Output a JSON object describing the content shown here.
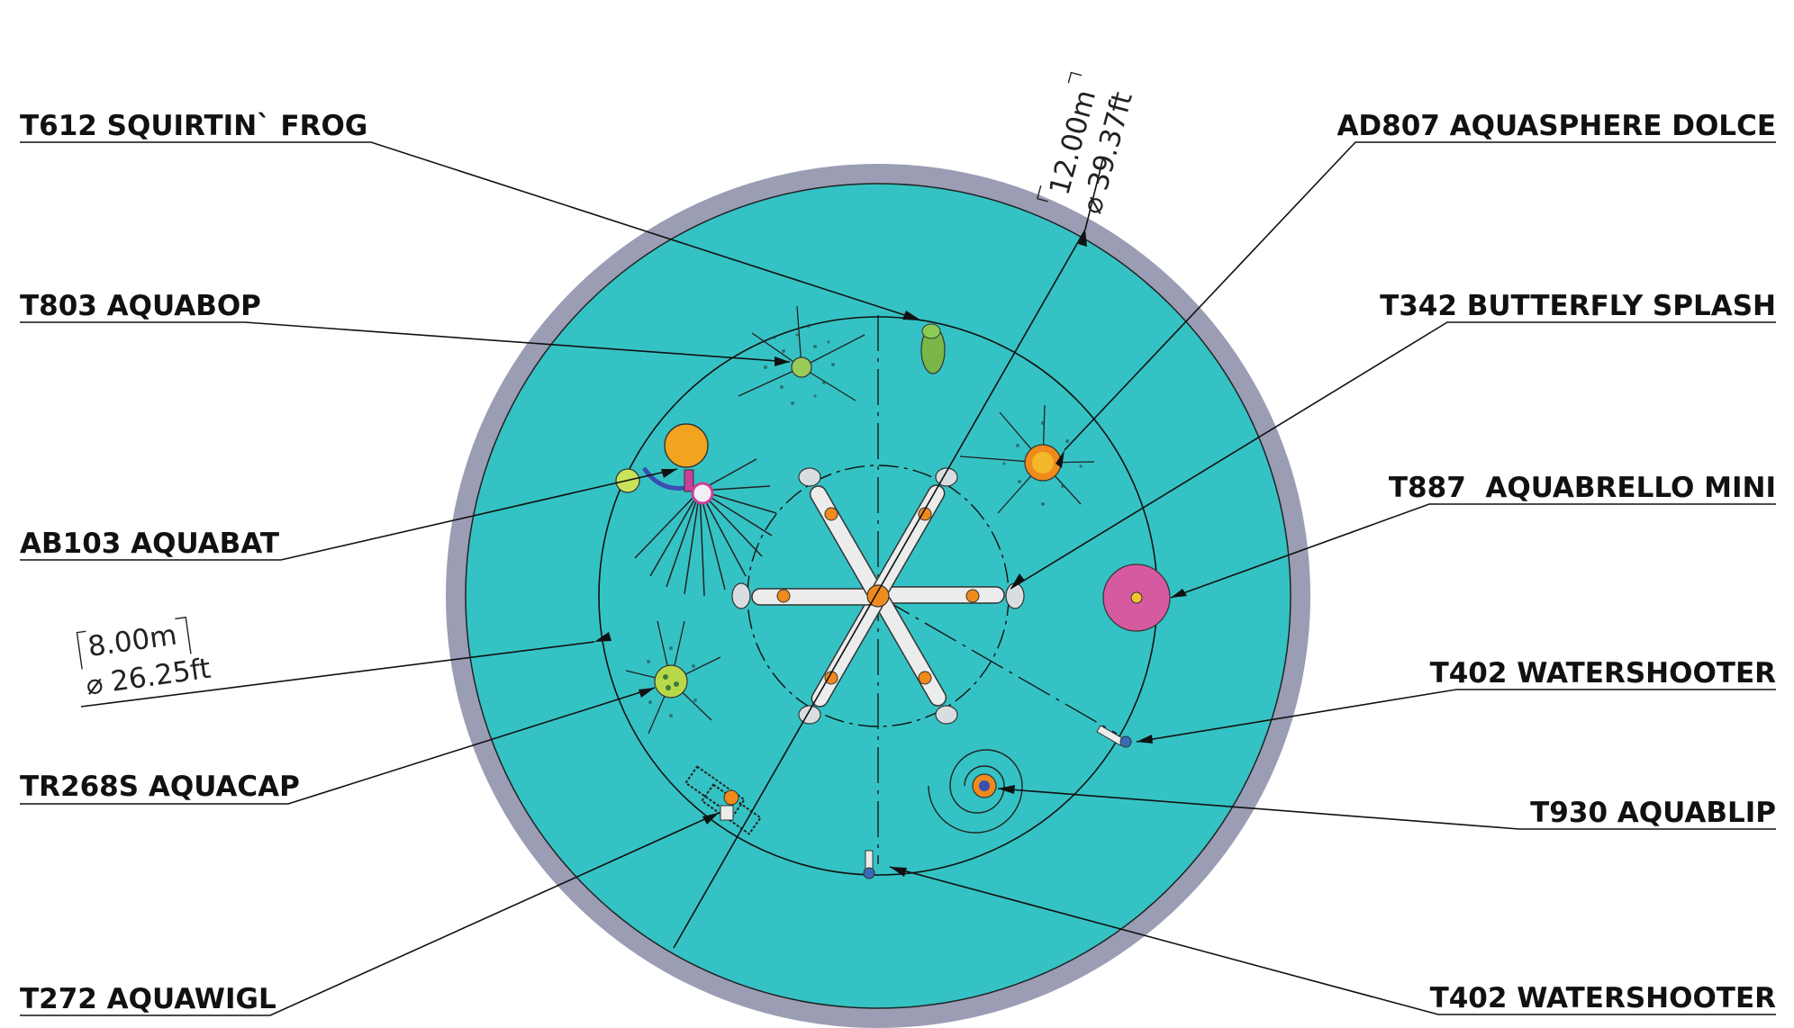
{
  "labels": {
    "frog": "T612 SQUIRTIN` FROG",
    "aquabop": "T803 AQUABOP",
    "aquabat": "AB103 AQUABAT",
    "aquacap": "TR268S AQUACAP",
    "aquawigl": "T272 AQUAWIGL",
    "aquasphere": "AD807 AQUASPHERE DOLCE",
    "butterfly": "T342 BUTTERFLY SPLASH",
    "aquabrello": "T887  AQUABRELLO MINI",
    "watershooter_right": "T402 WATERSHOOTER",
    "aquablip": "T930 AQUABLIP",
    "watershooter_bottom": "T402 WATERSHOOTER"
  },
  "dimensions": {
    "outer_m": "12.00m",
    "outer_ft": "39.37ft",
    "inner_m": "8.00m",
    "inner_ft": "26.25ft",
    "diameter_symbol": "⌀"
  },
  "colors": {
    "pool": "#35c2c4",
    "rim": "#9b9db5",
    "line": "#111111",
    "frog": "#7ab648",
    "aquabrello": "#d65aa0",
    "orange": "#f08a1c",
    "yellow": "#f2c230"
  }
}
